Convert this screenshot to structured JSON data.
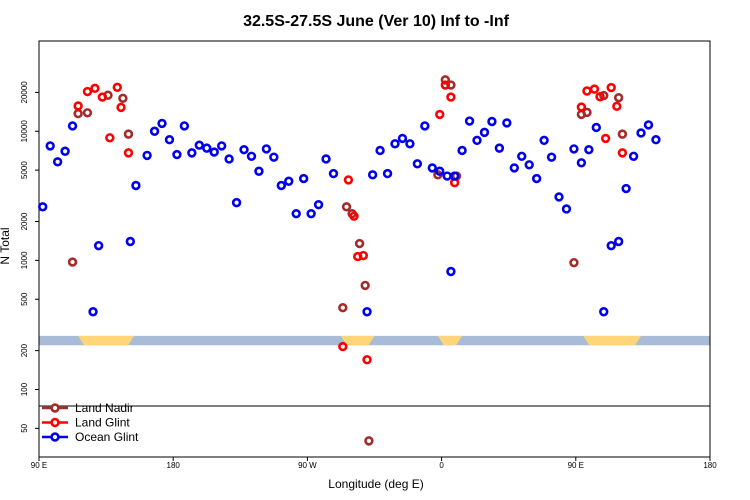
{
  "chart_data": {
    "type": "scatter",
    "title": "32.5S-27.5S June (Ver 10)   Inf to -Inf",
    "xlabel": "Longitude (deg E)",
    "ylabel": "N Total",
    "xlim": [
      90,
      450
    ],
    "ylim_log": [
      30,
      50000
    ],
    "y_scale": "log",
    "x_ticks": [
      {
        "value": 90,
        "label": "90 E"
      },
      {
        "value": 162,
        "label": "180"
      },
      {
        "value": 234,
        "label": "90 W"
      },
      {
        "value": 306,
        "label": "0"
      },
      {
        "value": 378,
        "label": "90 E"
      },
      {
        "value": 450,
        "label": "180"
      }
    ],
    "y_ticks": [
      {
        "value": 50,
        "label": "50"
      },
      {
        "value": 100,
        "label": "100"
      },
      {
        "value": 200,
        "label": "200"
      },
      {
        "value": 500,
        "label": "500"
      },
      {
        "value": 1000,
        "label": "1000"
      },
      {
        "value": 2000,
        "label": "2000"
      },
      {
        "value": 5000,
        "label": "5000"
      },
      {
        "value": 10000,
        "label": "10000"
      },
      {
        "value": 20000,
        "label": "20000"
      }
    ],
    "colors": {
      "land_nadir": "#a52a2a",
      "land_glint": "#ff0000",
      "ocean_glint": "#0000ee",
      "band": "#a8bcd8",
      "land_band": "#ffd57a"
    },
    "legend": [
      {
        "name": "Land Nadir",
        "key": "land_nadir"
      },
      {
        "name": "Land Glint",
        "key": "land_glint"
      },
      {
        "name": "Ocean Glint",
        "key": "ocean_glint"
      }
    ],
    "band_y_range": [
      220,
      260
    ],
    "land_band_segments": [
      [
        111,
        141
      ],
      [
        252,
        270
      ],
      [
        304,
        317
      ],
      [
        382,
        413
      ]
    ],
    "series": [
      {
        "name": "Land Nadir",
        "key": "land_nadir",
        "points": [
          [
            108,
            970
          ],
          [
            111,
            13700
          ],
          [
            116,
            13900
          ],
          [
            127,
            19000
          ],
          [
            135,
            18000
          ],
          [
            138,
            9500
          ],
          [
            253,
            430
          ],
          [
            255,
            2600
          ],
          [
            258,
            2300
          ],
          [
            262,
            1350
          ],
          [
            265,
            640
          ],
          [
            267,
            40
          ],
          [
            304,
            4600
          ],
          [
            308,
            25000
          ],
          [
            311,
            22800
          ],
          [
            314,
            4500
          ],
          [
            377,
            960
          ],
          [
            381,
            13500
          ],
          [
            384,
            14000
          ],
          [
            393,
            18900
          ],
          [
            401,
            18200
          ],
          [
            403,
            9500
          ]
        ]
      },
      {
        "name": "Land Glint",
        "key": "land_glint",
        "points": [
          [
            111,
            15700
          ],
          [
            116,
            20300
          ],
          [
            120,
            21500
          ],
          [
            124,
            18400
          ],
          [
            128,
            8900
          ],
          [
            132,
            21900
          ],
          [
            134,
            15300
          ],
          [
            138,
            6800
          ],
          [
            253,
            215
          ],
          [
            256,
            4200
          ],
          [
            259,
            2200
          ],
          [
            261,
            1070
          ],
          [
            264,
            1090
          ],
          [
            266,
            170
          ],
          [
            305,
            13500
          ],
          [
            308,
            22800
          ],
          [
            311,
            18400
          ],
          [
            313,
            4000
          ],
          [
            381,
            15400
          ],
          [
            384,
            20500
          ],
          [
            388,
            21200
          ],
          [
            391,
            18500
          ],
          [
            394,
            8800
          ],
          [
            397,
            21800
          ],
          [
            400,
            15600
          ],
          [
            403,
            6800
          ]
        ]
      },
      {
        "name": "Ocean Glint",
        "key": "ocean_glint",
        "points": [
          [
            92,
            2600
          ],
          [
            96,
            7700
          ],
          [
            100,
            5800
          ],
          [
            104,
            7000
          ],
          [
            108,
            11000
          ],
          [
            119,
            400
          ],
          [
            122,
            1300
          ],
          [
            139,
            1400
          ],
          [
            142,
            3800
          ],
          [
            148,
            6500
          ],
          [
            152,
            10000
          ],
          [
            156,
            11500
          ],
          [
            160,
            8600
          ],
          [
            164,
            6600
          ],
          [
            168,
            11000
          ],
          [
            172,
            6800
          ],
          [
            176,
            7800
          ],
          [
            180,
            7400
          ],
          [
            184,
            6900
          ],
          [
            188,
            7700
          ],
          [
            192,
            6100
          ],
          [
            196,
            2800
          ],
          [
            200,
            7200
          ],
          [
            204,
            6400
          ],
          [
            208,
            4900
          ],
          [
            212,
            7300
          ],
          [
            216,
            6300
          ],
          [
            220,
            3800
          ],
          [
            224,
            4100
          ],
          [
            228,
            2300
          ],
          [
            232,
            4300
          ],
          [
            236,
            2300
          ],
          [
            240,
            2700
          ],
          [
            244,
            6100
          ],
          [
            248,
            4700
          ],
          [
            266,
            400
          ],
          [
            269,
            4600
          ],
          [
            273,
            7100
          ],
          [
            277,
            4700
          ],
          [
            281,
            8000
          ],
          [
            285,
            8800
          ],
          [
            289,
            8000
          ],
          [
            293,
            5600
          ],
          [
            297,
            11000
          ],
          [
            301,
            5200
          ],
          [
            305,
            4900
          ],
          [
            309,
            4500
          ],
          [
            313,
            4500
          ],
          [
            317,
            7100
          ],
          [
            321,
            12000
          ],
          [
            325,
            8500
          ],
          [
            329,
            9800
          ],
          [
            333,
            11900
          ],
          [
            337,
            7400
          ],
          [
            341,
            11600
          ],
          [
            345,
            5200
          ],
          [
            349,
            6400
          ],
          [
            353,
            5500
          ],
          [
            357,
            4300
          ],
          [
            361,
            8500
          ],
          [
            365,
            6300
          ],
          [
            369,
            3100
          ],
          [
            373,
            2500
          ],
          [
            377,
            7300
          ],
          [
            381,
            5700
          ],
          [
            385,
            7200
          ],
          [
            389,
            10700
          ],
          [
            393,
            400
          ],
          [
            397,
            1300
          ],
          [
            401,
            1400
          ],
          [
            405,
            3600
          ],
          [
            409,
            6400
          ],
          [
            413,
            9700
          ],
          [
            417,
            11200
          ],
          [
            421,
            8600
          ],
          [
            311,
            820
          ]
        ]
      }
    ]
  }
}
